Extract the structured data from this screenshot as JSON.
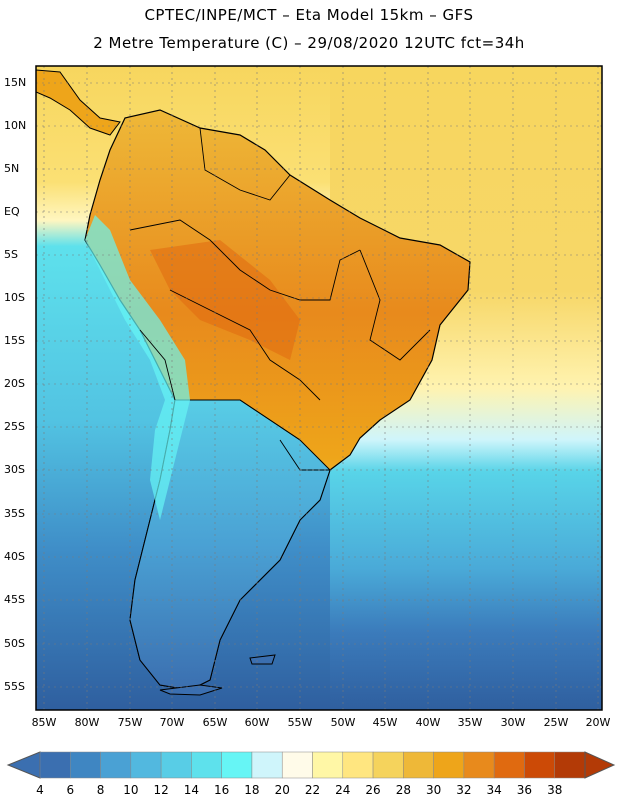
{
  "title_line1": "CPTEC/INPE/MCT –  Eta Model 15km – GFS",
  "title_line2": "2 Metre Temperature (C) – 29/08/2020 12UTC fct=34h",
  "lat_labels": [
    "15N",
    "10N",
    "5N",
    "EQ",
    "5S",
    "10S",
    "15S",
    "20S",
    "25S",
    "30S",
    "35S",
    "40S",
    "45S",
    "50S",
    "55S"
  ],
  "lon_labels": [
    "85W",
    "80W",
    "75W",
    "70W",
    "65W",
    "60W",
    "55W",
    "50W",
    "45W",
    "40W",
    "35W",
    "30W",
    "25W",
    "20W"
  ],
  "colorbar": {
    "labels": [
      "4",
      "6",
      "8",
      "10",
      "12",
      "14",
      "16",
      "18",
      "20",
      "22",
      "24",
      "26",
      "28",
      "30",
      "32",
      "34",
      "36",
      "38"
    ],
    "colors": [
      "#3b6fb0",
      "#3f86c2",
      "#4aa1d4",
      "#52b8df",
      "#58cde6",
      "#5ee1ec",
      "#66f5f5",
      "#cff5fb",
      "#fffbe9",
      "#fff7a6",
      "#ffe680",
      "#f5d35c",
      "#eeb838",
      "#eea51a",
      "#e88a1c",
      "#e06a10",
      "#cc4a06",
      "#b33a06"
    ]
  },
  "icons": {
    "left_arrow": "colorbar-low-arrow",
    "right_arrow": "colorbar-high-arrow"
  }
}
